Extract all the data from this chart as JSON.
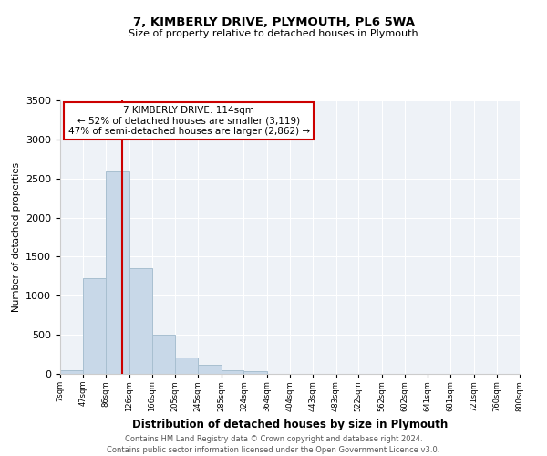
{
  "title": "7, KIMBERLY DRIVE, PLYMOUTH, PL6 5WA",
  "subtitle": "Size of property relative to detached houses in Plymouth",
  "xlabel": "Distribution of detached houses by size in Plymouth",
  "ylabel": "Number of detached properties",
  "bar_color": "#c8d8e8",
  "bar_edgecolor": "#a8bfd0",
  "vline_color": "#cc0000",
  "vline_x": 114,
  "annotation_title": "7 KIMBERLY DRIVE: 114sqm",
  "annotation_line1": "← 52% of detached houses are smaller (3,119)",
  "annotation_line2": "47% of semi-detached houses are larger (2,862) →",
  "footnote1": "Contains HM Land Registry data © Crown copyright and database right 2024.",
  "footnote2": "Contains public sector information licensed under the Open Government Licence v3.0.",
  "bins": [
    7,
    47,
    86,
    126,
    166,
    205,
    245,
    285,
    324,
    364,
    404,
    443,
    483,
    522,
    562,
    602,
    641,
    681,
    721,
    760,
    800
  ],
  "counts": [
    50,
    1230,
    2590,
    1350,
    500,
    205,
    115,
    45,
    35,
    5,
    5,
    5,
    0,
    0,
    0,
    0,
    0,
    0,
    0,
    0
  ],
  "ylim": [
    0,
    3500
  ],
  "yticks": [
    0,
    500,
    1000,
    1500,
    2000,
    2500,
    3000,
    3500
  ],
  "background_color": "#eef2f7"
}
